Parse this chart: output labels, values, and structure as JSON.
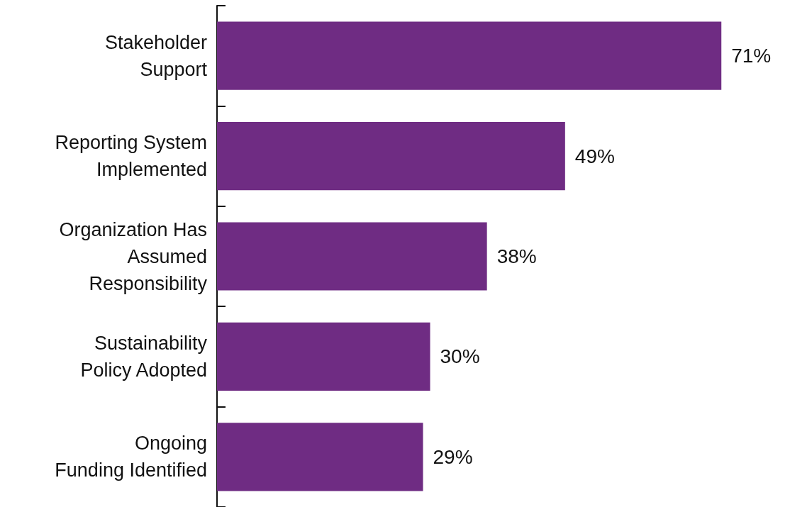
{
  "chart_data": {
    "type": "bar",
    "orientation": "horizontal",
    "categories": [
      "Stakeholder\nSupport",
      "Reporting System\nImplemented",
      "Organization Has\nAssumed\nResponsibility",
      "Sustainability\nPolicy Adopted",
      "Ongoing\nFunding Identified"
    ],
    "values": [
      71,
      49,
      38,
      30,
      29
    ],
    "value_labels": [
      "71%",
      "49%",
      "38%",
      "30%",
      "29%"
    ],
    "color": "#6f2c83"
  }
}
